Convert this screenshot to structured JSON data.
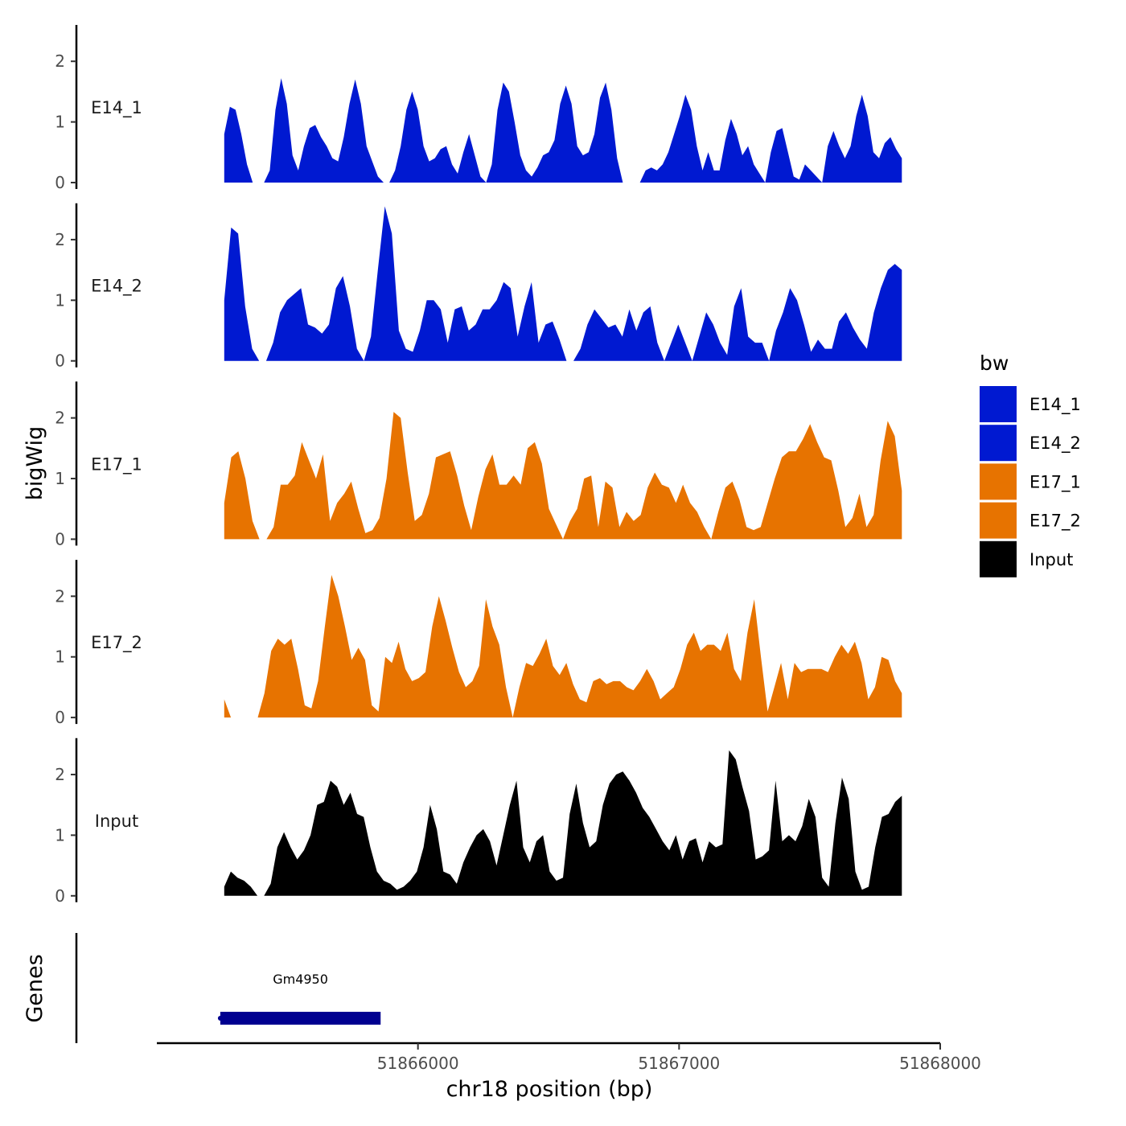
{
  "chart_data": {
    "type": "area",
    "title": "",
    "ylabel": "bigWig",
    "genes_label": "Genes",
    "xlabel": "chr18 position (bp)",
    "chromosome": "chr18",
    "x_range": [
      51865258,
      51867853
    ],
    "xlim": [
      51865000,
      51868000
    ],
    "ylim": [
      0,
      2.6
    ],
    "x_ticks": [
      51866000,
      51867000,
      51868000
    ],
    "x_tick_labels": [
      "51866000",
      "51867000",
      "51868000"
    ],
    "y_ticks": [
      0,
      1,
      2
    ],
    "y_tick_labels": [
      "0",
      "1",
      "2"
    ],
    "series": [
      {
        "name": "E14_1",
        "color": "#0019d1",
        "values": [
          0.8,
          1.25,
          1.2,
          0.8,
          0.3,
          0,
          0,
          0,
          0.2,
          1.2,
          1.72,
          1.3,
          0.45,
          0.2,
          0.6,
          0.9,
          0.95,
          0.75,
          0.6,
          0.4,
          0.35,
          0.75,
          1.3,
          1.7,
          1.3,
          0.6,
          0.35,
          0.1,
          0,
          0,
          0.2,
          0.6,
          1.2,
          1.5,
          1.2,
          0.6,
          0.35,
          0.4,
          0.55,
          0.6,
          0.3,
          0.15,
          0.5,
          0.8,
          0.45,
          0.1,
          0,
          0.3,
          1.2,
          1.65,
          1.5,
          1.0,
          0.45,
          0.2,
          0.1,
          0.25,
          0.45,
          0.5,
          0.7,
          1.3,
          1.6,
          1.3,
          0.6,
          0.45,
          0.5,
          0.8,
          1.4,
          1.65,
          1.2,
          0.4,
          0,
          0,
          0,
          0,
          0.2,
          0.25,
          0.2,
          0.3,
          0.5,
          0.8,
          1.1,
          1.45,
          1.2,
          0.6,
          0.2,
          0.5,
          0.2,
          0.2,
          0.7,
          1.05,
          0.8,
          0.45,
          0.6,
          0.3,
          0.15,
          0,
          0.5,
          0.85,
          0.9,
          0.5,
          0.1,
          0.05,
          0.3,
          0.2,
          0.1,
          0,
          0.6,
          0.85,
          0.6,
          0.4,
          0.6,
          1.1,
          1.45,
          1.1,
          0.5,
          0.4,
          0.65,
          0.75,
          0.55,
          0.4
        ]
      },
      {
        "name": "E14_2",
        "color": "#0019d1",
        "values": [
          1.0,
          2.2,
          2.1,
          0.9,
          0.2,
          0,
          0,
          0.3,
          0.8,
          1.0,
          1.1,
          1.2,
          0.6,
          0.55,
          0.45,
          0.6,
          1.2,
          1.4,
          0.9,
          0.2,
          0,
          0.4,
          1.5,
          2.55,
          2.1,
          0.5,
          0.2,
          0.15,
          0.5,
          1.0,
          1.0,
          0.85,
          0.3,
          0.85,
          0.9,
          0.5,
          0.6,
          0.85,
          0.85,
          1.0,
          1.3,
          1.2,
          0.4,
          0.9,
          1.3,
          0.3,
          0.6,
          0.65,
          0.35,
          0,
          0,
          0.2,
          0.6,
          0.85,
          0.7,
          0.55,
          0.6,
          0.4,
          0.85,
          0.5,
          0.8,
          0.9,
          0.3,
          0,
          0.3,
          0.6,
          0.3,
          0,
          0.4,
          0.8,
          0.6,
          0.3,
          0.1,
          0.9,
          1.2,
          0.4,
          0.3,
          0.3,
          0,
          0.5,
          0.8,
          1.2,
          1.0,
          0.6,
          0.15,
          0.35,
          0.2,
          0.2,
          0.65,
          0.8,
          0.55,
          0.35,
          0.2,
          0.8,
          1.2,
          1.5,
          1.6,
          1.5
        ]
      },
      {
        "name": "E17_1",
        "color": "#e77300",
        "values": [
          0.6,
          1.35,
          1.45,
          1.0,
          0.3,
          0,
          0,
          0.2,
          0.9,
          0.9,
          1.05,
          1.6,
          1.3,
          1.0,
          1.4,
          0.3,
          0.6,
          0.75,
          0.95,
          0.5,
          0.1,
          0.15,
          0.35,
          1.0,
          2.1,
          2.0,
          1.1,
          0.3,
          0.4,
          0.75,
          1.35,
          1.4,
          1.45,
          1.05,
          0.55,
          0.15,
          0.7,
          1.15,
          1.4,
          0.9,
          0.9,
          1.05,
          0.9,
          1.5,
          1.6,
          1.25,
          0.5,
          0.25,
          0,
          0.3,
          0.5,
          1.0,
          1.05,
          0.2,
          0.95,
          0.85,
          0.2,
          0.45,
          0.3,
          0.4,
          0.85,
          1.1,
          0.9,
          0.85,
          0.6,
          0.9,
          0.6,
          0.45,
          0.2,
          0,
          0.45,
          0.85,
          0.95,
          0.65,
          0.2,
          0.15,
          0.2,
          0.6,
          1.0,
          1.35,
          1.45,
          1.45,
          1.65,
          1.9,
          1.6,
          1.35,
          1.3,
          0.8,
          0.2,
          0.35,
          0.75,
          0.2,
          0.4,
          1.3,
          1.95,
          1.7,
          0.8
        ]
      },
      {
        "name": "E17_2",
        "color": "#e77300",
        "values": [
          0.3,
          0,
          0,
          0,
          0,
          0,
          0.4,
          1.1,
          1.3,
          1.2,
          1.3,
          0.8,
          0.2,
          0.15,
          0.6,
          1.5,
          2.35,
          2.0,
          1.5,
          0.95,
          1.15,
          0.95,
          0.2,
          0.1,
          1.0,
          0.9,
          1.25,
          0.8,
          0.6,
          0.65,
          0.75,
          1.5,
          2.0,
          1.6,
          1.15,
          0.75,
          0.5,
          0.6,
          0.85,
          1.95,
          1.5,
          1.2,
          0.5,
          0,
          0.5,
          0.9,
          0.85,
          1.05,
          1.3,
          0.85,
          0.7,
          0.9,
          0.55,
          0.3,
          0.25,
          0.6,
          0.65,
          0.55,
          0.6,
          0.6,
          0.5,
          0.45,
          0.6,
          0.8,
          0.6,
          0.3,
          0.4,
          0.5,
          0.8,
          1.2,
          1.4,
          1.1,
          1.2,
          1.2,
          1.1,
          1.4,
          0.8,
          0.6,
          1.4,
          1.95,
          1.0,
          0.1,
          0.5,
          0.9,
          0.3,
          0.9,
          0.75,
          0.8,
          0.8,
          0.8,
          0.75,
          1.0,
          1.2,
          1.05,
          1.25,
          0.9,
          0.3,
          0.5,
          1.0,
          0.95,
          0.6,
          0.4
        ]
      },
      {
        "name": "Input",
        "color": "#000000",
        "values": [
          0.15,
          0.4,
          0.3,
          0.25,
          0.15,
          0,
          0,
          0.2,
          0.8,
          1.05,
          0.8,
          0.6,
          0.75,
          1.0,
          1.5,
          1.55,
          1.9,
          1.8,
          1.5,
          1.7,
          1.35,
          1.3,
          0.8,
          0.4,
          0.25,
          0.2,
          0.1,
          0.15,
          0.25,
          0.4,
          0.8,
          1.5,
          1.1,
          0.4,
          0.35,
          0.2,
          0.55,
          0.8,
          1.0,
          1.1,
          0.9,
          0.5,
          1.0,
          1.5,
          1.9,
          0.8,
          0.55,
          0.9,
          1.0,
          0.4,
          0.25,
          0.3,
          1.35,
          1.85,
          1.2,
          0.8,
          0.9,
          1.5,
          1.85,
          2.0,
          2.05,
          1.9,
          1.7,
          1.45,
          1.3,
          1.1,
          0.9,
          0.75,
          1.0,
          0.6,
          0.9,
          0.95,
          0.55,
          0.9,
          0.8,
          0.85,
          2.4,
          2.25,
          1.8,
          1.4,
          0.6,
          0.65,
          0.75,
          1.9,
          0.9,
          1.0,
          0.9,
          1.15,
          1.6,
          1.3,
          0.3,
          0.15,
          1.2,
          1.95,
          1.6,
          0.4,
          0.1,
          0.15,
          0.8,
          1.3,
          1.35,
          1.55,
          1.65
        ]
      }
    ],
    "legend_title": "bw",
    "legend_position": "right",
    "legend_entries": [
      {
        "label": "E14_1",
        "color": "#0019d1"
      },
      {
        "label": "E14_2",
        "color": "#0019d1"
      },
      {
        "label": "E17_1",
        "color": "#e77300"
      },
      {
        "label": "E17_2",
        "color": "#e77300"
      },
      {
        "label": "Input",
        "color": "#000000"
      }
    ],
    "genes": [
      {
        "name": "Gm4950",
        "start": 51865243,
        "end": 51865857,
        "color": "#000090"
      }
    ]
  }
}
